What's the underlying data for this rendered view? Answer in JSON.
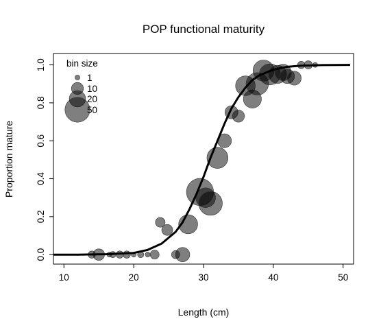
{
  "chart_data": {
    "type": "scatter",
    "title": "POP functional maturity",
    "xlabel": "Length (cm)",
    "ylabel": "Proportion mature",
    "xlim": [
      8.5,
      51.5
    ],
    "ylim": [
      -0.05,
      1.06
    ],
    "x_ticks": [
      10,
      20,
      30,
      40,
      50
    ],
    "y_ticks": [
      0.0,
      0.2,
      0.4,
      0.6,
      0.8,
      1.0
    ],
    "x_tick_labels": [
      "10",
      "20",
      "30",
      "40",
      "50"
    ],
    "y_tick_labels": [
      "0.0",
      "0.2",
      "0.4",
      "0.6",
      "0.8",
      "1.0"
    ],
    "point_color": "#000000",
    "point_opacity": 0.5,
    "legend": {
      "title": "bin size",
      "placement": "top-left",
      "entries": [
        {
          "label": "1",
          "size": 1
        },
        {
          "label": "10",
          "size": 10
        },
        {
          "label": "20",
          "size": 20
        },
        {
          "label": "50",
          "size": 50
        }
      ]
    },
    "points": [
      {
        "x": 14,
        "y": 0.0,
        "n": 3
      },
      {
        "x": 15,
        "y": 0.0,
        "n": 9
      },
      {
        "x": 16.5,
        "y": 0.0,
        "n": 1
      },
      {
        "x": 17,
        "y": 0.0,
        "n": 2
      },
      {
        "x": 18,
        "y": 0.0,
        "n": 3
      },
      {
        "x": 19,
        "y": 0.0,
        "n": 3
      },
      {
        "x": 20,
        "y": 0.0,
        "n": 1
      },
      {
        "x": 21,
        "y": 0.0,
        "n": 2
      },
      {
        "x": 22,
        "y": 0.0,
        "n": 1
      },
      {
        "x": 23,
        "y": 0.0,
        "n": 5
      },
      {
        "x": 23.8,
        "y": 0.17,
        "n": 6
      },
      {
        "x": 24.8,
        "y": 0.13,
        "n": 8
      },
      {
        "x": 26,
        "y": 0.0,
        "n": 4
      },
      {
        "x": 27,
        "y": 0.0,
        "n": 15
      },
      {
        "x": 27.8,
        "y": 0.16,
        "n": 28
      },
      {
        "x": 29.5,
        "y": 0.33,
        "n": 60
      },
      {
        "x": 30.3,
        "y": 0.3,
        "n": 30
      },
      {
        "x": 31,
        "y": 0.27,
        "n": 45
      },
      {
        "x": 32,
        "y": 0.51,
        "n": 35
      },
      {
        "x": 33,
        "y": 0.6,
        "n": 14
      },
      {
        "x": 34,
        "y": 0.75,
        "n": 12
      },
      {
        "x": 35,
        "y": 0.73,
        "n": 10
      },
      {
        "x": 36,
        "y": 0.89,
        "n": 30
      },
      {
        "x": 37,
        "y": 0.82,
        "n": 25
      },
      {
        "x": 37.7,
        "y": 0.9,
        "n": 40
      },
      {
        "x": 38.6,
        "y": 0.97,
        "n": 35
      },
      {
        "x": 39.5,
        "y": 0.95,
        "n": 35
      },
      {
        "x": 40.6,
        "y": 0.95,
        "n": 25
      },
      {
        "x": 41.4,
        "y": 0.96,
        "n": 20
      },
      {
        "x": 42,
        "y": 0.94,
        "n": 15
      },
      {
        "x": 43,
        "y": 0.93,
        "n": 14
      },
      {
        "x": 44,
        "y": 1.0,
        "n": 3
      },
      {
        "x": 45,
        "y": 1.0,
        "n": 4
      },
      {
        "x": 46,
        "y": 1.0,
        "n": 1
      }
    ],
    "curve": {
      "type": "logistic",
      "x": [
        8.5,
        12,
        16,
        20,
        22,
        24,
        26,
        27,
        28,
        29,
        30,
        31,
        32,
        33,
        34,
        35,
        36,
        37,
        38,
        39,
        40,
        42,
        44,
        47,
        51
      ],
      "y": [
        0.0,
        0.0,
        0.002,
        0.009,
        0.025,
        0.058,
        0.12,
        0.17,
        0.24,
        0.32,
        0.41,
        0.51,
        0.6,
        0.69,
        0.77,
        0.83,
        0.88,
        0.92,
        0.945,
        0.96,
        0.975,
        0.99,
        0.996,
        0.999,
        1.0
      ]
    }
  }
}
